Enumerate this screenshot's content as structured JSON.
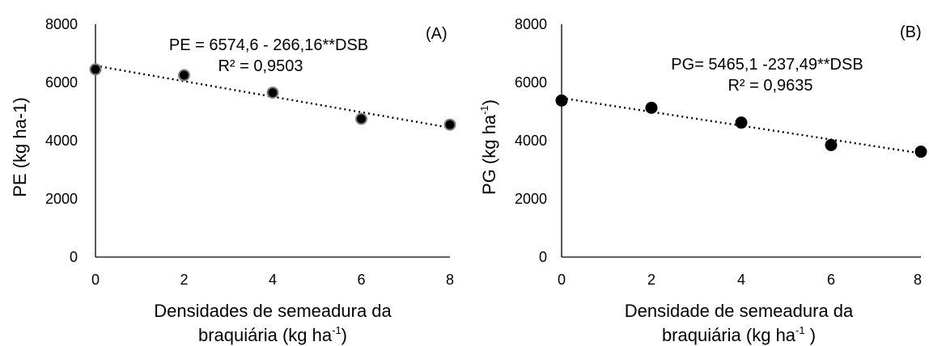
{
  "chart_data": [
    {
      "type": "scatter",
      "panel": "(A)",
      "ylabel": "PE (kg ha-1)",
      "xlabel_line1": "Densidades de semeadura da",
      "xlabel_line2_pre": "braquiária (kg ha",
      "xlabel_line2_sup": "-1",
      "xlabel_line2_post": ")",
      "x": [
        0,
        2,
        4,
        6,
        8
      ],
      "y": [
        6450,
        6250,
        5650,
        4750,
        4550
      ],
      "xlim": [
        0,
        8
      ],
      "ylim": [
        0,
        8000
      ],
      "xticks": [
        "0",
        "2",
        "4",
        "6",
        "8"
      ],
      "yticks": [
        "0",
        "2000",
        "4000",
        "6000",
        "8000"
      ],
      "trendline": {
        "intercept": 6574.6,
        "slope": -266.16,
        "style": "dotted"
      },
      "equation": "PE = 6574,6 - 266,16**DSB",
      "r2": "R² = 0,9503",
      "marker_color": "#000000",
      "marker_edge": "#808080",
      "grid": false
    },
    {
      "type": "scatter",
      "panel": "(B)",
      "ylabel_pre": "PG (kg ha",
      "ylabel_sup": "-1",
      "ylabel_post": ")",
      "xlabel_line1": "Densidade de semeadura da",
      "xlabel_line2_pre": "braquiária (kg ha",
      "xlabel_line2_sup": "-1",
      "xlabel_line2_post": " )",
      "x": [
        0,
        2,
        4,
        6,
        8
      ],
      "y": [
        5380,
        5130,
        4620,
        3850,
        3620
      ],
      "xlim": [
        0,
        8
      ],
      "ylim": [
        0,
        8000
      ],
      "xticks": [
        "0",
        "2",
        "4",
        "6",
        "8"
      ],
      "yticks": [
        "0",
        "2000",
        "4000",
        "6000",
        "8000"
      ],
      "trendline": {
        "intercept": 5465.1,
        "slope": -237.49,
        "style": "dotted"
      },
      "equation": "PG= 5465,1 -237,49**DSB",
      "r2": "R² = 0,9635",
      "marker_color": "#000000",
      "marker_edge": "#000000",
      "grid": false
    }
  ]
}
